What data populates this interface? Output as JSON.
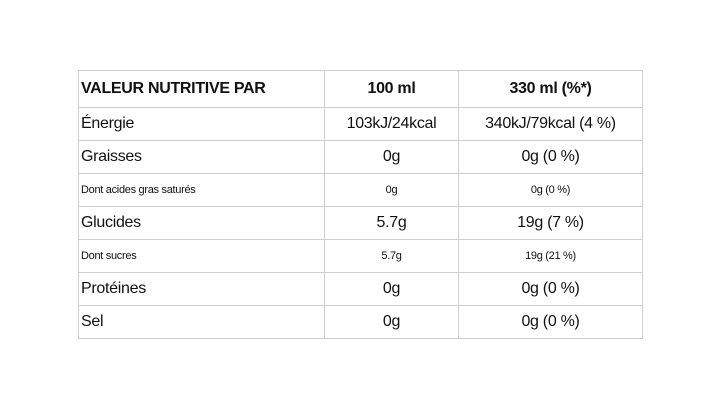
{
  "table": {
    "headers": [
      "VALEUR NUTRITIVE PAR",
      "100 ml",
      "330 ml (%*)"
    ],
    "rows": [
      {
        "label": "Énergie",
        "per100": "103kJ/24kcal",
        "per330": "340kJ/79kcal (4 %)"
      },
      {
        "label": "Graisses",
        "per100": "0g",
        "per330": "0g (0 %)"
      },
      {
        "label": "Dont acides gras saturés",
        "per100": "0g",
        "per330": "0g (0 %)"
      },
      {
        "label": "Glucides",
        "per100": "5.7g",
        "per330": "19g (7 %)"
      },
      {
        "label": "Dont sucres",
        "per100": "5.7g",
        "per330": "19g (21 %)"
      },
      {
        "label": "Protéines",
        "per100": "0g",
        "per330": "0g (0 %)"
      },
      {
        "label": "Sel",
        "per100": "0g",
        "per330": "0g (0 %)"
      }
    ]
  }
}
